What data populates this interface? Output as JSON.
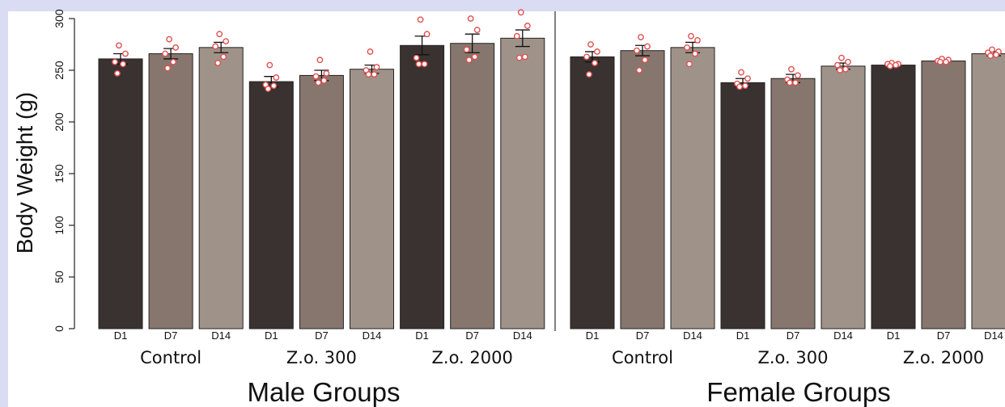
{
  "chart_data": {
    "type": "bar",
    "ylabel": "Body Weight (g)",
    "ylim": [
      0,
      300
    ],
    "yticks": [
      "0",
      "50",
      "100",
      "150",
      "200",
      "250",
      "300"
    ],
    "bar_colors": [
      "#3a3230",
      "#87766d",
      "#9f9389"
    ],
    "point_color": "#e05050",
    "panels": [
      {
        "title": "Male Groups",
        "groups": [
          {
            "name": "Control",
            "bars": [
              {
                "label": "D1",
                "value": 261,
                "err": 5,
                "points": [
                  274,
                  266,
                  258,
                  256,
                  247
                ]
              },
              {
                "label": "D7",
                "value": 266,
                "err": 5,
                "points": [
                  280,
                  272,
                  266,
                  258,
                  252
                ]
              },
              {
                "label": "D14",
                "value": 272,
                "err": 5,
                "points": [
                  285,
                  278,
                  273,
                  263,
                  257
                ]
              }
            ]
          },
          {
            "name": "Z.o. 300",
            "bars": [
              {
                "label": "D1",
                "value": 239,
                "err": 5,
                "points": [
                  255,
                  243,
                  236,
                  235,
                  232
                ]
              },
              {
                "label": "D7",
                "value": 245,
                "err": 5,
                "points": [
                  260,
                  247,
                  244,
                  240,
                  238
                ]
              },
              {
                "label": "D14",
                "value": 251,
                "err": 4,
                "points": [
                  268,
                  253,
                  250,
                  246,
                  246
                ]
              }
            ]
          },
          {
            "name": "Z.o. 2000",
            "bars": [
              {
                "label": "D1",
                "value": 274,
                "err": 9,
                "points": [
                  299,
                  285,
                  262,
                  256,
                  256
                ]
              },
              {
                "label": "D7",
                "value": 276,
                "err": 9,
                "points": [
                  300,
                  289,
                  270,
                  263,
                  260
                ]
              },
              {
                "label": "D14",
                "value": 281,
                "err": 8,
                "points": [
                  306,
                  293,
                  283,
                  263,
                  262
                ]
              }
            ]
          }
        ]
      },
      {
        "title": "Female Groups",
        "groups": [
          {
            "name": "Control",
            "bars": [
              {
                "label": "D1",
                "value": 263,
                "err": 5,
                "points": [
                  275,
                  268,
                  263,
                  257,
                  246
                ]
              },
              {
                "label": "D7",
                "value": 269,
                "err": 5,
                "points": [
                  282,
                  273,
                  269,
                  260,
                  250
                ]
              },
              {
                "label": "D14",
                "value": 272,
                "err": 5,
                "points": [
                  283,
                  279,
                  272,
                  266,
                  256
                ]
              }
            ]
          },
          {
            "name": "Z.o. 300",
            "bars": [
              {
                "label": "D1",
                "value": 238,
                "err": 4,
                "points": [
                  248,
                  242,
                  237,
                  235,
                  234
                ]
              },
              {
                "label": "D7",
                "value": 242,
                "err": 4,
                "points": [
                  251,
                  245,
                  241,
                  238,
                  238
                ]
              },
              {
                "label": "D14",
                "value": 254,
                "err": 3,
                "points": [
                  262,
                  258,
                  255,
                  251,
                  250
                ]
              }
            ]
          },
          {
            "name": "Z.o. 2000",
            "bars": [
              {
                "label": "D1",
                "value": 255,
                "err": 1,
                "points": [
                  257,
                  256,
                  256,
                  255,
                  254
                ]
              },
              {
                "label": "D7",
                "value": 259,
                "err": 1,
                "points": [
                  261,
                  260,
                  259,
                  258,
                  258
                ]
              },
              {
                "label": "D14",
                "value": 266,
                "err": 2,
                "points": [
                  270,
                  268,
                  267,
                  265,
                  264
                ]
              }
            ]
          }
        ]
      }
    ]
  }
}
